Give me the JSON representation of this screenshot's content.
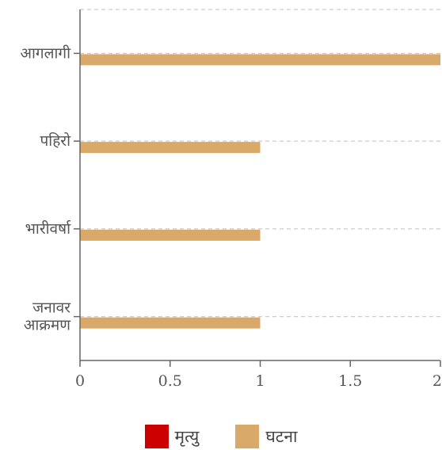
{
  "chart_data": {
    "type": "bar",
    "orientation": "horizontal",
    "categories": [
      "आगलागी",
      "पहिरो",
      "भारीवर्षा",
      "जनावर आक्रमण"
    ],
    "category_lines": [
      [
        "आगलागी"
      ],
      [
        "पहिरो"
      ],
      [
        "भारीवर्षा"
      ],
      [
        "जनावर",
        "आक्रमण"
      ]
    ],
    "series": [
      {
        "name": "मृत्यु",
        "color": "#cc0000",
        "values": [
          0,
          0,
          0,
          0
        ]
      },
      {
        "name": "घटना",
        "color": "#d9a96a",
        "values": [
          2,
          1,
          1,
          1
        ]
      }
    ],
    "xlim": [
      0,
      2
    ],
    "xticks": [
      0,
      0.5,
      1,
      1.5,
      2
    ],
    "xtick_labels": [
      "0",
      "0.5",
      "1",
      "1.5",
      "2"
    ],
    "grid": "dashed horizontal",
    "legend_position": "bottom"
  },
  "legend": {
    "items": [
      {
        "label": "मृत्यु",
        "color": "#cc0000"
      },
      {
        "label": "घटना",
        "color": "#d9a96a"
      }
    ]
  }
}
